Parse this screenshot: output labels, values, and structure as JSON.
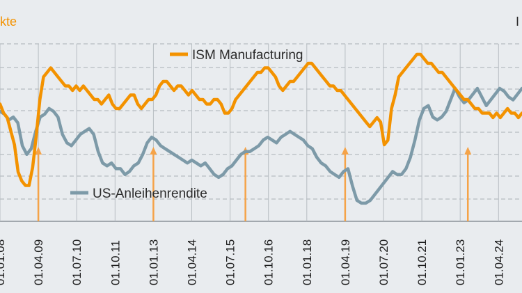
{
  "chart_data": {
    "type": "line",
    "title": "",
    "y_left_label_partial": "kte",
    "y_right_label_partial": "I",
    "x_tick_labels": [
      "01.01.08",
      "01.04.09",
      "01.07.10",
      "01.10.11",
      "01.01.13",
      "01.04.14",
      "01.07.15",
      "01.10.16",
      "01.01.18",
      "01.04.19",
      "01.07.20",
      "01.10.21",
      "01.01.23",
      "01.04.24"
    ],
    "grid": true,
    "series": [
      {
        "name": "ISM Manufacturing",
        "color": "#f39200",
        "values": [
          51,
          49,
          48,
          45,
          42,
          36,
          34,
          33,
          33,
          37,
          44,
          52,
          57,
          58,
          59,
          58,
          57,
          56,
          55,
          55,
          54,
          55,
          54,
          55,
          54,
          53,
          52,
          52,
          51,
          52,
          53,
          51,
          50,
          50,
          51,
          52,
          53,
          53,
          51,
          50,
          51,
          52,
          52,
          53,
          55,
          56,
          56,
          55,
          54,
          55,
          55,
          54,
          53,
          54,
          53,
          52,
          52,
          51,
          51,
          52,
          52,
          51,
          49,
          49,
          50,
          52,
          53,
          54,
          55,
          56,
          57,
          58,
          58,
          59,
          59,
          58,
          57,
          55,
          54,
          55,
          56,
          56,
          57,
          58,
          59,
          60,
          60,
          59,
          58,
          57,
          56,
          55,
          55,
          54,
          54,
          53,
          52,
          51,
          50,
          49,
          48,
          47,
          46,
          47,
          48,
          47,
          42,
          43,
          50,
          53,
          57,
          58,
          59,
          60,
          61,
          62,
          62,
          61,
          60,
          60,
          59,
          58,
          58,
          57,
          56,
          55,
          54,
          53,
          52,
          52,
          51,
          50,
          50,
          49,
          49,
          49,
          48,
          49,
          48,
          49,
          50,
          49,
          49,
          48,
          49
        ]
      },
      {
        "name": "US-Anleihenrendite",
        "color": "#7d9aa8",
        "values": [
          3.8,
          3.7,
          3.5,
          3.6,
          3.4,
          2.6,
          2.3,
          2.5,
          3.1,
          3.6,
          3.7,
          3.9,
          3.8,
          3.6,
          3.0,
          2.7,
          2.6,
          2.8,
          3.0,
          3.1,
          3.2,
          3.0,
          2.4,
          2.0,
          1.9,
          2.0,
          1.8,
          1.8,
          1.6,
          1.7,
          1.9,
          2.0,
          2.3,
          2.7,
          2.9,
          2.8,
          2.6,
          2.5,
          2.4,
          2.3,
          2.2,
          2.1,
          2.0,
          2.1,
          2.0,
          1.9,
          2.0,
          1.8,
          1.6,
          1.5,
          1.6,
          1.8,
          1.9,
          2.1,
          2.3,
          2.4,
          2.4,
          2.5,
          2.6,
          2.8,
          2.9,
          2.8,
          2.7,
          2.9,
          3.0,
          3.1,
          3.0,
          2.9,
          2.8,
          2.6,
          2.5,
          2.2,
          2.0,
          1.9,
          1.7,
          1.6,
          1.5,
          1.7,
          1.8,
          1.2,
          0.7,
          0.6,
          0.6,
          0.7,
          0.9,
          1.1,
          1.3,
          1.5,
          1.7,
          1.6,
          1.6,
          1.8,
          2.2,
          2.8,
          3.5,
          3.9,
          4.0,
          3.6,
          3.5,
          3.6,
          3.8,
          4.2,
          4.6,
          4.3,
          4.1,
          4.2,
          4.4,
          4.6,
          4.3,
          4.0,
          4.2,
          4.4,
          4.6,
          4.5,
          4.3,
          4.2,
          4.4,
          4.6
        ]
      }
    ],
    "markers": [
      "01.04.09",
      "01.01.13",
      "01.01.16",
      "01.04.19",
      "01.04.23"
    ]
  }
}
